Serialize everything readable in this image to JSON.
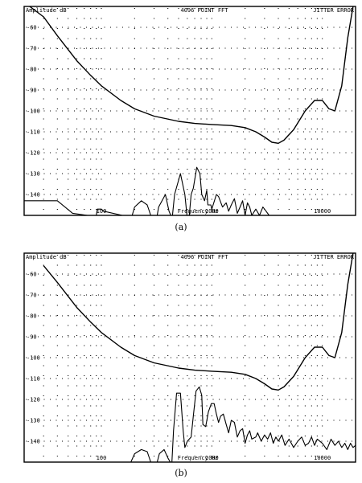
{
  "chart_data": [
    {
      "type": "line",
      "title": "4096 POINT FFT",
      "top_left_label": "Amplitude dB",
      "top_right_label": "JITTER ERROR",
      "xlabel": "Frequency Hz",
      "x_scale": "log",
      "xlim": [
        20,
        20000
      ],
      "ylim": [
        -150,
        -50
      ],
      "x_tick_labels": [
        "100",
        "1000",
        "10000"
      ],
      "y_tick_labels": [
        "-60",
        "-70",
        "-80",
        "-90",
        "-100",
        "-110",
        "-120",
        "-130",
        "-140"
      ],
      "grid": true,
      "caption": "(a)",
      "series": [
        {
          "kind": "threshold",
          "points": [
            [
              20,
              -48
            ],
            [
              30,
              -55
            ],
            [
              40,
              -64
            ],
            [
              60,
              -76
            ],
            [
              80,
              -83
            ],
            [
              100,
              -88
            ],
            [
              150,
              -95
            ],
            [
              200,
              -99
            ],
            [
              300,
              -102.5
            ],
            [
              500,
              -105
            ],
            [
              700,
              -106
            ],
            [
              1000,
              -106.5
            ],
            [
              1500,
              -107
            ],
            [
              2000,
              -108
            ],
            [
              2500,
              -110
            ],
            [
              3000,
              -112.5
            ],
            [
              3500,
              -115
            ],
            [
              4000,
              -115.5
            ],
            [
              4500,
              -114
            ],
            [
              5500,
              -109
            ],
            [
              7000,
              -100
            ],
            [
              8500,
              -95
            ],
            [
              10000,
              -95
            ],
            [
              11500,
              -99
            ],
            [
              13000,
              -100
            ],
            [
              15000,
              -88
            ],
            [
              17000,
              -65
            ],
            [
              19000,
              -50
            ]
          ]
        },
        {
          "kind": "spectrum",
          "points": [
            [
              20,
              -143
            ],
            [
              40,
              -143
            ],
            [
              55,
              -149
            ],
            [
              75,
              -150
            ],
            [
              90,
              -150
            ],
            [
              92,
              -147
            ],
            [
              100,
              -147
            ],
            [
              105,
              -148
            ],
            [
              155,
              -150
            ],
            [
              190,
              -150
            ],
            [
              200,
              -146
            ],
            [
              230,
              -143
            ],
            [
              260,
              -145
            ],
            [
              280,
              -150
            ],
            [
              320,
              -150
            ],
            [
              330,
              -146
            ],
            [
              380,
              -140
            ],
            [
              410,
              -148
            ],
            [
              425,
              -150
            ],
            [
              440,
              -150
            ],
            [
              460,
              -140
            ],
            [
              520,
              -130
            ],
            [
              570,
              -140
            ],
            [
              595,
              -150
            ],
            [
              625,
              -150
            ],
            [
              650,
              -140
            ],
            [
              680,
              -137
            ],
            [
              730,
              -127
            ],
            [
              780,
              -130
            ],
            [
              810,
              -140
            ],
            [
              860,
              -143
            ],
            [
              900,
              -138
            ],
            [
              920,
              -145
            ],
            [
              980,
              -145
            ],
            [
              1000,
              -147
            ],
            [
              1100,
              -140
            ],
            [
              1150,
              -141
            ],
            [
              1250,
              -146
            ],
            [
              1350,
              -144
            ],
            [
              1420,
              -148
            ],
            [
              1500,
              -145
            ],
            [
              1600,
              -142
            ],
            [
              1700,
              -149
            ],
            [
              1800,
              -146
            ],
            [
              1900,
              -143
            ],
            [
              2000,
              -150
            ],
            [
              2100,
              -144
            ],
            [
              2200,
              -146
            ],
            [
              2300,
              -150
            ],
            [
              2500,
              -147
            ],
            [
              2700,
              -150
            ],
            [
              2900,
              -146
            ],
            [
              3100,
              -148
            ],
            [
              3300,
              -150
            ]
          ]
        }
      ]
    },
    {
      "type": "line",
      "title": "4096 POINT FFT",
      "top_left_label": "Amplitude dB",
      "top_right_label": "JITTER ERROR",
      "xlabel": "Frequency Hz",
      "x_scale": "log",
      "xlim": [
        20,
        20000
      ],
      "ylim": [
        -150,
        -50
      ],
      "x_tick_labels": [
        "100",
        "1000",
        "10000"
      ],
      "y_tick_labels": [
        "-60",
        "-70",
        "-80",
        "-90",
        "-100",
        "-110",
        "-120",
        "-130",
        "-140"
      ],
      "grid": true,
      "caption": "(b)",
      "series": [
        {
          "kind": "threshold",
          "points": [
            [
              30,
              -56
            ],
            [
              40,
              -64
            ],
            [
              60,
              -76
            ],
            [
              80,
              -83
            ],
            [
              100,
              -88
            ],
            [
              150,
              -95
            ],
            [
              200,
              -99
            ],
            [
              300,
              -102.5
            ],
            [
              500,
              -105
            ],
            [
              700,
              -106
            ],
            [
              1000,
              -106.5
            ],
            [
              1500,
              -107
            ],
            [
              2000,
              -108
            ],
            [
              2500,
              -110
            ],
            [
              3000,
              -112.5
            ],
            [
              3500,
              -115
            ],
            [
              4000,
              -115.5
            ],
            [
              4500,
              -114
            ],
            [
              5500,
              -109
            ],
            [
              7000,
              -100
            ],
            [
              8500,
              -95
            ],
            [
              10000,
              -95
            ],
            [
              11500,
              -99
            ],
            [
              13000,
              -100
            ],
            [
              15000,
              -88
            ],
            [
              17000,
              -65
            ],
            [
              19000,
              -50
            ]
          ]
        },
        {
          "kind": "spectrum",
          "points": [
            [
              185,
              -150
            ],
            [
              200,
              -146
            ],
            [
              230,
              -144
            ],
            [
              260,
              -145
            ],
            [
              280,
              -150
            ],
            [
              320,
              -150
            ],
            [
              335,
              -146
            ],
            [
              370,
              -144
            ],
            [
              400,
              -148
            ],
            [
              420,
              -150
            ],
            [
              435,
              -150
            ],
            [
              450,
              -135
            ],
            [
              480,
              -117
            ],
            [
              520,
              -117
            ],
            [
              550,
              -135
            ],
            [
              570,
              -143
            ],
            [
              600,
              -140
            ],
            [
              650,
              -138
            ],
            [
              680,
              -128
            ],
            [
              720,
              -116
            ],
            [
              770,
              -114
            ],
            [
              810,
              -118
            ],
            [
              830,
              -132
            ],
            [
              880,
              -133
            ],
            [
              930,
              -126
            ],
            [
              990,
              -122
            ],
            [
              1050,
              -122
            ],
            [
              1100,
              -127
            ],
            [
              1150,
              -131
            ],
            [
              1200,
              -128
            ],
            [
              1270,
              -127
            ],
            [
              1350,
              -132
            ],
            [
              1420,
              -136
            ],
            [
              1500,
              -130
            ],
            [
              1600,
              -131
            ],
            [
              1700,
              -138
            ],
            [
              1800,
              -135
            ],
            [
              1900,
              -134
            ],
            [
              2000,
              -141
            ],
            [
              2100,
              -137
            ],
            [
              2200,
              -135
            ],
            [
              2300,
              -139
            ],
            [
              2500,
              -138
            ],
            [
              2600,
              -136
            ],
            [
              2800,
              -140
            ],
            [
              3000,
              -137
            ],
            [
              3200,
              -139
            ],
            [
              3400,
              -136
            ],
            [
              3600,
              -141
            ],
            [
              3800,
              -138
            ],
            [
              4000,
              -140
            ],
            [
              4300,
              -137
            ],
            [
              4600,
              -142
            ],
            [
              5000,
              -139
            ],
            [
              5500,
              -143
            ],
            [
              6000,
              -140
            ],
            [
              6500,
              -138
            ],
            [
              7000,
              -142
            ],
            [
              7500,
              -141
            ],
            [
              8000,
              -138
            ],
            [
              8500,
              -142
            ],
            [
              9000,
              -139
            ],
            [
              10000,
              -141
            ],
            [
              11000,
              -144
            ],
            [
              12000,
              -139
            ],
            [
              13000,
              -142
            ],
            [
              14000,
              -140
            ],
            [
              15000,
              -143
            ],
            [
              16000,
              -141
            ],
            [
              17000,
              -144
            ],
            [
              18000,
              -141
            ],
            [
              19000,
              -143
            ],
            [
              20000,
              -142
            ]
          ]
        }
      ]
    }
  ]
}
